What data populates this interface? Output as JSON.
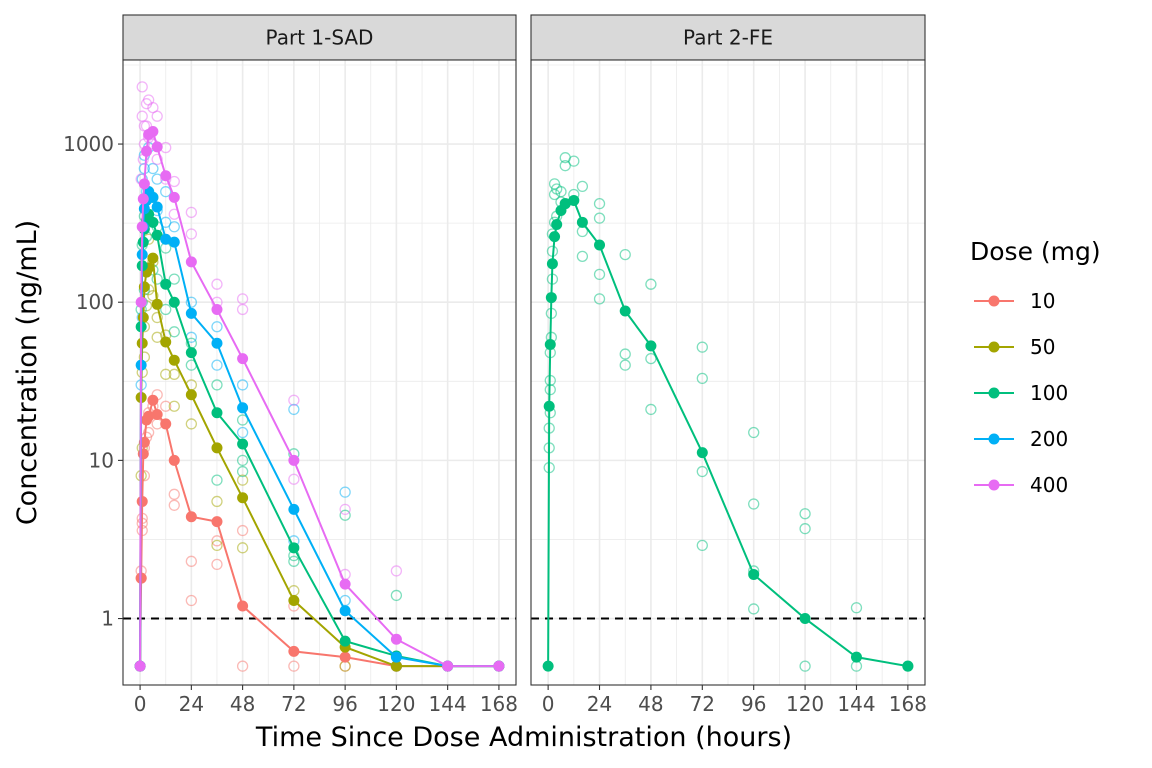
{
  "chart_data": {
    "type": "line",
    "xlabel": "Time Since Dose Administration (hours)",
    "ylabel": "Concentration (ng/mL)",
    "y_scale": "log",
    "ylim": [
      0.38,
      3400
    ],
    "y_ticks": [
      1,
      10,
      100,
      1000
    ],
    "y_tick_labels": [
      "1",
      "10",
      "100",
      "1000"
    ],
    "xlim": [
      -8,
      176
    ],
    "x_ticks": [
      0,
      24,
      48,
      72,
      96,
      120,
      144,
      168
    ],
    "x_tick_labels": [
      "0",
      "24",
      "48",
      "72",
      "96",
      "120",
      "144",
      "168"
    ],
    "reference_line": {
      "y": 1,
      "style": "dashed",
      "color": "#000000"
    },
    "grid": true,
    "legend": {
      "title": "Dose (mg)",
      "position": "right",
      "items": [
        {
          "label": "10",
          "color": "#F8766D"
        },
        {
          "label": "50",
          "color": "#A3A500"
        },
        {
          "label": "100",
          "color": "#00BF7D"
        },
        {
          "label": "200",
          "color": "#00B0F6"
        },
        {
          "label": "400",
          "color": "#E76BF3"
        }
      ]
    },
    "panels": [
      {
        "title": "Part 1-SAD",
        "series": [
          {
            "name": "10",
            "color": "#F8766D",
            "x": [
              0,
              0.5,
              1,
              1.5,
              2,
              3,
              4,
              6,
              8,
              12,
              16,
              24,
              36,
              48,
              72,
              96,
              120,
              144,
              168
            ],
            "y": [
              0.5,
              1.8,
              5.5,
              11,
              13,
              18,
              19,
              24,
              19.5,
              17,
              10,
              4.4,
              4.1,
              1.2,
              0.62,
              0.57,
              0.5,
              0.5,
              0.5
            ]
          },
          {
            "name": "50",
            "color": "#A3A500",
            "x": [
              0,
              0.5,
              1,
              1.5,
              2,
              3,
              4,
              6,
              8,
              12,
              16,
              24,
              36,
              48,
              72,
              96,
              120,
              144,
              168
            ],
            "y": [
              0.5,
              25,
              55,
              80,
              125,
              155,
              165,
              190,
              97,
              56,
              43,
              26,
              12,
              5.8,
              1.3,
              0.66,
              0.5,
              0.5,
              0.5
            ]
          },
          {
            "name": "100",
            "color": "#00BF7D",
            "x": [
              0,
              0.5,
              1,
              1.5,
              2,
              3,
              4,
              6,
              8,
              12,
              16,
              24,
              36,
              48,
              72,
              96,
              120,
              144,
              168
            ],
            "y": [
              0.5,
              70,
              170,
              240,
              290,
              330,
              360,
              320,
              265,
              130,
              100,
              48,
              20,
              12.7,
              2.8,
              0.72,
              0.58,
              0.5,
              0.5
            ]
          },
          {
            "name": "200",
            "color": "#00B0F6",
            "x": [
              0,
              0.5,
              1,
              1.5,
              2,
              3,
              4,
              6,
              8,
              12,
              16,
              24,
              36,
              48,
              72,
              96,
              120,
              144,
              168
            ],
            "y": [
              0.5,
              40,
              200,
              300,
              390,
              440,
              500,
              460,
              400,
              250,
              240,
              85,
              55,
              21.5,
              4.9,
              1.12,
              0.57,
              0.5,
              0.5
            ]
          },
          {
            "name": "400",
            "color": "#E76BF3",
            "x": [
              0,
              0.5,
              1,
              1.5,
              2,
              3,
              4,
              6,
              8,
              12,
              16,
              24,
              36,
              48,
              72,
              96,
              120,
              144,
              168
            ],
            "y": [
              0.5,
              100,
              300,
              450,
              560,
              900,
              1150,
              1200,
              960,
              630,
              460,
              180,
              90,
              44,
              10,
              1.65,
              0.74,
              0.5,
              0.5
            ]
          }
        ],
        "individual_observations": [
          {
            "series": "10",
            "x": [
              0.5,
              0.5,
              1,
              1,
              1,
              2,
              2,
              3,
              4,
              4,
              6,
              8,
              8,
              12,
              16,
              16,
              24,
              24,
              36,
              36,
              48,
              48,
              72,
              72,
              96,
              120
            ],
            "y": [
              1.8,
              2,
              3.6,
              4,
              4.3,
              8,
              12,
              14,
              15,
              20,
              22,
              17,
              26,
              22,
              6.1,
              5.2,
              2.3,
              1.3,
              3.1,
              2.2,
              3.6,
              0.5,
              1.2,
              0.5,
              0.5,
              0.5
            ]
          },
          {
            "series": "50",
            "x": [
              0.5,
              1,
              1,
              2,
              2,
              3,
              4,
              4,
              6,
              6,
              8,
              8,
              12,
              12,
              16,
              16,
              24,
              24,
              36,
              36,
              48,
              48,
              72,
              96,
              120
            ],
            "y": [
              8,
              12,
              36,
              45,
              70,
              95,
              120,
              250,
              110,
              180,
              60,
              80,
              35,
              62,
              22,
              35,
              17,
              30,
              5.5,
              2.9,
              2.8,
              7.5,
              1.5,
              0.5,
              0.5
            ]
          },
          {
            "series": "100",
            "x": [
              0.5,
              1,
              1,
              2,
              2,
              3,
              4,
              6,
              6,
              8,
              8,
              12,
              12,
              16,
              16,
              24,
              24,
              36,
              36,
              48,
              48,
              48,
              72,
              72,
              72,
              96,
              120
            ],
            "y": [
              90,
              100,
              230,
              120,
              350,
              260,
              500,
              160,
              460,
              300,
              140,
              220,
              90,
              140,
              65,
              40,
              55,
              30,
              7.5,
              10,
              8.5,
              18,
              2.3,
              2.5,
              11,
              4.5,
              1.4
            ]
          },
          {
            "series": "200",
            "x": [
              0.5,
              1,
              1,
              2,
              2,
              3,
              4,
              6,
              8,
              8,
              12,
              12,
              16,
              24,
              24,
              36,
              36,
              48,
              48,
              72,
              72,
              96,
              96,
              120
            ],
            "y": [
              30,
              80,
              600,
              700,
              850,
              500,
              950,
              700,
              380,
              600,
              320,
              500,
              300,
              60,
              100,
              40,
              70,
              15,
              30,
              3.1,
              21,
              6.3,
              1.3,
              0.5
            ]
          },
          {
            "series": "400",
            "x": [
              0.5,
              1,
              1,
              1.5,
              2,
              2,
              3,
              3,
              4,
              4,
              6,
              6,
              8,
              8,
              12,
              12,
              16,
              16,
              24,
              24,
              36,
              36,
              48,
              48,
              72,
              72,
              96,
              96,
              120
            ],
            "y": [
              600,
              1500,
              2300,
              800,
              1300,
              1000,
              1800,
              1300,
              1900,
              1100,
              1700,
              1000,
              1500,
              800,
              950,
              600,
              580,
              360,
              370,
              270,
              130,
              100,
              105,
              90,
              24,
              7.6,
              4.9,
              1.9,
              2
            ]
          }
        ]
      },
      {
        "title": "Part 2-FE",
        "series": [
          {
            "name": "100",
            "color": "#00BF7D",
            "x": [
              0,
              0.5,
              1,
              1.5,
              2,
              3,
              4,
              6,
              8,
              12,
              16,
              24,
              36,
              48,
              72,
              96,
              120,
              144,
              168
            ],
            "y": [
              0.5,
              22,
              54,
              107,
              175,
              260,
              310,
              380,
              420,
              440,
              320,
              230,
              88,
              53,
              11.2,
              1.9,
              1.0,
              0.57,
              0.5
            ]
          }
        ],
        "individual_observations": [
          {
            "series": "100",
            "x": [
              0.5,
              0.5,
              0.5,
              1,
              1,
              1,
              1,
              1.5,
              1.5,
              2,
              2,
              2,
              3,
              3,
              3,
              4,
              4,
              6,
              6,
              8,
              8,
              8,
              12,
              12,
              16,
              16,
              16,
              24,
              24,
              24,
              24,
              36,
              36,
              36,
              48,
              48,
              48,
              72,
              72,
              72,
              72,
              96,
              96,
              96,
              96,
              120,
              120,
              120,
              144,
              144,
              168
            ],
            "y": [
              9,
              12,
              16,
              20,
              28,
              32,
              48,
              60,
              85,
              140,
              210,
              270,
              320,
              480,
              560,
              350,
              520,
              430,
              500,
              420,
              730,
              820,
              480,
              780,
              540,
              280,
              195,
              420,
              340,
              150,
              105,
              200,
              47,
              40,
              130,
              44,
              21,
              52,
              33,
              8.5,
              2.9,
              15,
              5.3,
              2,
              1.15,
              4.6,
              3.7,
              0.5,
              1.17,
              0.5,
              0.5
            ]
          }
        ]
      }
    ]
  }
}
